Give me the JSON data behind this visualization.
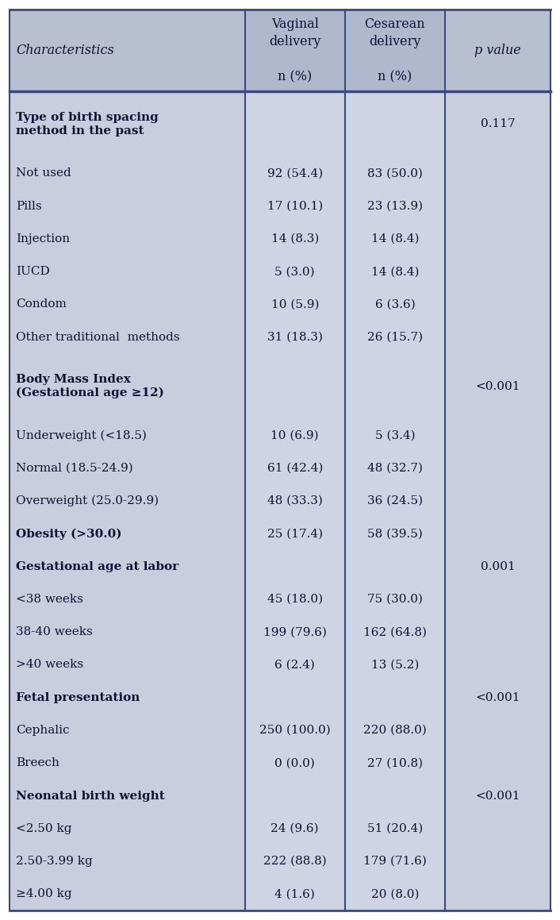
{
  "header_bg": "#b8bfd0",
  "row_bg": "#c5ccd e0",
  "col_mid_bg": "#ced4e3",
  "border_color": "#3a4a7a",
  "text_color": "#111133",
  "rows": [
    {
      "label": "Type of birth spacing\nmethod in the past",
      "bold": true,
      "val1": "",
      "val2": "",
      "pval": "0.117",
      "multiline": true
    },
    {
      "label": "Not used",
      "bold": false,
      "val1": "92 (54.4)",
      "val2": "83 (50.0)",
      "pval": "",
      "multiline": false
    },
    {
      "label": "Pills",
      "bold": false,
      "val1": "17 (10.1)",
      "val2": "23 (13.9)",
      "pval": "",
      "multiline": false
    },
    {
      "label": "Injection",
      "bold": false,
      "val1": "14 (8.3)",
      "val2": "14 (8.4)",
      "pval": "",
      "multiline": false
    },
    {
      "label": "IUCD",
      "bold": false,
      "val1": "5 (3.0)",
      "val2": "14 (8.4)",
      "pval": "",
      "multiline": false
    },
    {
      "label": "Condom",
      "bold": false,
      "val1": "10 (5.9)",
      "val2": "6 (3.6)",
      "pval": "",
      "multiline": false
    },
    {
      "label": "Other traditional  methods",
      "bold": false,
      "val1": "31 (18.3)",
      "val2": "26 (15.7)",
      "pval": "",
      "multiline": false
    },
    {
      "label": "Body Mass Index\n(Gestational age ≥12)",
      "bold": true,
      "val1": "",
      "val2": "",
      "pval": "<0.001",
      "multiline": true
    },
    {
      "label": "Underweight (<18.5)",
      "bold": false,
      "val1": "10 (6.9)",
      "val2": "5 (3.4)",
      "pval": "",
      "multiline": false
    },
    {
      "label": "Normal (18.5-24.9)",
      "bold": false,
      "val1": "61 (42.4)",
      "val2": "48 (32.7)",
      "pval": "",
      "multiline": false
    },
    {
      "label": "Overweight (25.0-29.9)",
      "bold": false,
      "val1": "48 (33.3)",
      "val2": "36 (24.5)",
      "pval": "",
      "multiline": false
    },
    {
      "label": "Obesity (>30.0)",
      "bold": true,
      "val1": "25 (17.4)",
      "val2": "58 (39.5)",
      "pval": "",
      "multiline": false
    },
    {
      "label": "Gestational age at labor",
      "bold": true,
      "val1": "",
      "val2": "",
      "pval": "0.001",
      "multiline": false
    },
    {
      "label": "<38 weeks",
      "bold": false,
      "val1": "45 (18.0)",
      "val2": "75 (30.0)",
      "pval": "",
      "multiline": false
    },
    {
      "label": "38-40 weeks",
      "bold": false,
      "val1": "199 (79.6)",
      "val2": "162 (64.8)",
      "pval": "",
      "multiline": false
    },
    {
      "label": ">40 weeks",
      "bold": false,
      "val1": "6 (2.4)",
      "val2": "13 (5.2)",
      "pval": "",
      "multiline": false
    },
    {
      "label": "Fetal presentation",
      "bold": true,
      "val1": "",
      "val2": "",
      "pval": "<0.001",
      "multiline": false
    },
    {
      "label": "Cephalic",
      "bold": false,
      "val1": "250 (100.0)",
      "val2": "220 (88.0)",
      "pval": "",
      "multiline": false
    },
    {
      "label": "Breech",
      "bold": false,
      "val1": "0 (0.0)",
      "val2": "27 (10.8)",
      "pval": "",
      "multiline": false
    },
    {
      "label": "Neonatal birth weight",
      "bold": true,
      "val1": "",
      "val2": "",
      "pval": "<0.001",
      "multiline": false
    },
    {
      "label": "<2.50 kg",
      "bold": false,
      "val1": "24 (9.6)",
      "val2": "51 (20.4)",
      "pval": "",
      "multiline": false
    },
    {
      "label": "2.50-3.99 kg",
      "bold": false,
      "val1": "222 (88.8)",
      "val2": "179 (71.6)",
      "pval": "",
      "multiline": false
    },
    {
      "label": "≥4.00 kg",
      "bold": false,
      "val1": "4 (1.6)",
      "val2": "20 (8.0)",
      "pval": "",
      "multiline": false
    }
  ],
  "fig_width": 7.06,
  "fig_height": 11.59,
  "font_size": 11.0,
  "header_font_size": 11.5
}
